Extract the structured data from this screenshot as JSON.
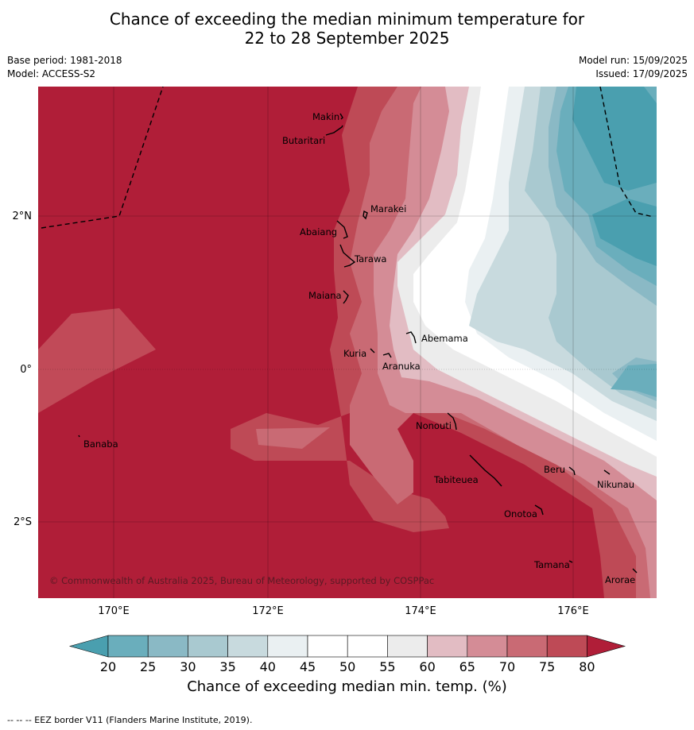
{
  "title_line1": "Chance of exceeding the median minimum temperature for",
  "title_line2": "22 to 28 September 2025",
  "base_period": "Base period: 1981-2018",
  "model": "Model: ACCESS-S2",
  "model_run": "Model run: 15/09/2025",
  "issued": "Issued: 17/09/2025",
  "lat_labels": [
    "2°N",
    "0°",
    "2°S"
  ],
  "lon_labels": [
    "170°E",
    "172°E",
    "174°E",
    "176°E"
  ],
  "islands": [
    "Makin",
    "Butaritari",
    "Marakei",
    "Abaiang",
    "Tarawa",
    "Maiana",
    "Abemama",
    "Kuria",
    "Aranuka",
    "Banaba",
    "Nonouti",
    "Tabiteuea",
    "Beru",
    "Nikunau",
    "Onotoa",
    "Tamana",
    "Arorae"
  ],
  "copyright": "© Commonwealth of Australia 2025, Bureau of Meteorology, supported by COSPPac",
  "colorbar": {
    "ticks": [
      "20",
      "25",
      "30",
      "35",
      "40",
      "45",
      "50",
      "55",
      "60",
      "65",
      "70",
      "75",
      "80"
    ],
    "title": "Chance of exceeding median min. temp. (%)",
    "colors": [
      "#4a9faf",
      "#6aaebc",
      "#8ab9c5",
      "#a9c9d0",
      "#c8dade",
      "#eaf0f2",
      "#ffffff",
      "#ffffff",
      "#ececec",
      "#e2bcc3",
      "#d48c96",
      "#c96a74",
      "#be4a56",
      "#b01e38"
    ]
  },
  "footer": "--  --  -- EEZ border V11 (Flanders Marine Institute, 2019)."
}
